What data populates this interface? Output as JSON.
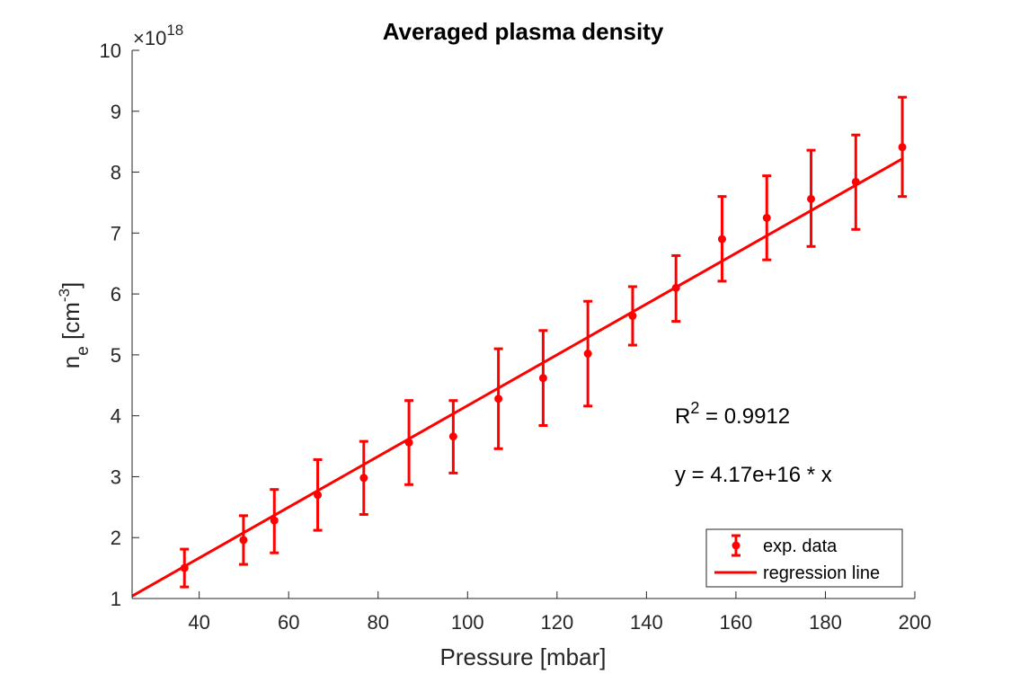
{
  "chart_data": {
    "type": "scatter",
    "title": "Averaged plasma density",
    "xlabel": "Pressure [mbar]",
    "ylabel": {
      "base": "n",
      "sub": "e",
      "unit_pre": " [cm",
      "unit_sup": "-3",
      "unit_post": "]"
    },
    "xlim": [
      25,
      200
    ],
    "ylim": [
      1,
      10
    ],
    "xticks": [
      40,
      60,
      80,
      100,
      120,
      140,
      160,
      180,
      200
    ],
    "yticks": [
      1,
      2,
      3,
      4,
      5,
      6,
      7,
      8,
      9,
      10
    ],
    "y_exponent": {
      "prefix": "×10",
      "power": "18"
    },
    "grid": false,
    "series": [
      {
        "name": "exp. data",
        "kind": "errorbar",
        "color": "#ff0000",
        "x": [
          36.7,
          49.9,
          56.8,
          66.5,
          76.8,
          86.9,
          96.8,
          106.9,
          116.9,
          126.9,
          136.9,
          146.6,
          156.9,
          166.9,
          176.8,
          186.8,
          197.2
        ],
        "y": [
          1.5,
          1.96,
          2.28,
          2.7,
          2.98,
          3.56,
          3.66,
          4.28,
          4.62,
          5.02,
          5.64,
          6.1,
          6.9,
          7.25,
          7.56,
          7.84,
          8.41
        ],
        "y_upper": [
          1.81,
          2.36,
          2.79,
          3.28,
          3.58,
          4.25,
          4.25,
          5.1,
          5.4,
          5.88,
          6.12,
          6.63,
          7.6,
          7.94,
          8.36,
          8.61,
          9.23
        ],
        "y_lower": [
          1.19,
          1.56,
          1.75,
          2.12,
          2.38,
          2.87,
          3.06,
          3.46,
          3.84,
          4.16,
          5.16,
          5.55,
          6.21,
          6.56,
          6.78,
          7.06,
          7.6
        ]
      },
      {
        "name": "regression line",
        "kind": "line",
        "color": "#ff0000",
        "x": [
          25,
          197.2
        ],
        "y": [
          1.04,
          8.22
        ]
      }
    ],
    "legend": {
      "position": "bottom-right",
      "entries": [
        "exp. data",
        "regression line"
      ]
    },
    "annotations": [
      {
        "id": "r2",
        "parts": {
          "pre": "R",
          "sup": "2",
          "post": " = 0.9912"
        }
      },
      {
        "id": "eq",
        "text": "y = 4.17e+16 * x"
      }
    ]
  }
}
